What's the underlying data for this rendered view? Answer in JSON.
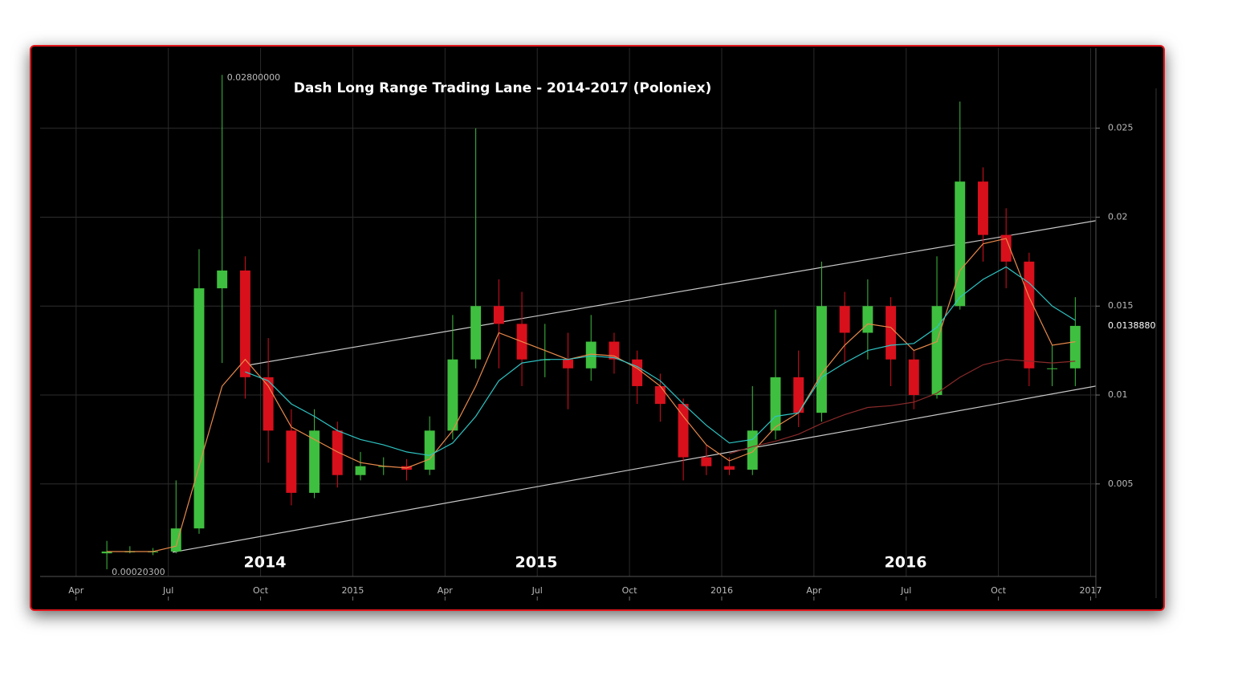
{
  "chart_data": {
    "type": "candlestick",
    "title": "Dash Long Range Trading Lane - 2014-2017 (Poloniex)",
    "x": [
      4.0,
      4.75,
      5.5,
      6.25,
      7.0,
      7.75,
      8.5,
      9.25,
      10.0,
      10.75,
      11.5,
      12.25,
      13.0,
      13.75,
      14.5,
      15.25,
      16.0,
      16.75,
      17.5,
      18.25,
      19.0,
      19.75,
      20.5,
      21.25,
      22.0,
      22.75,
      23.5,
      24.25,
      25.0,
      25.75,
      26.5,
      27.25,
      28.0,
      28.75,
      29.5,
      30.25,
      31.0,
      31.75,
      32.5,
      33.25,
      34.0,
      34.75,
      35.5
    ],
    "open": [
      0.0011,
      0.0012,
      0.0012,
      0.0012,
      0.0025,
      0.016,
      0.017,
      0.011,
      0.008,
      0.0045,
      0.008,
      0.0055,
      0.006,
      0.006,
      0.0058,
      0.008,
      0.012,
      0.015,
      0.014,
      0.012,
      0.012,
      0.0115,
      0.013,
      0.012,
      0.0105,
      0.0095,
      0.0065,
      0.006,
      0.0058,
      0.008,
      0.011,
      0.009,
      0.015,
      0.0135,
      0.015,
      0.012,
      0.01,
      0.015,
      0.022,
      0.019,
      0.0175,
      0.0115,
      0.0115
    ],
    "high": [
      0.0018,
      0.0015,
      0.0014,
      0.0052,
      0.0182,
      0.028,
      0.0178,
      0.0132,
      0.0092,
      0.0092,
      0.0085,
      0.0068,
      0.0065,
      0.0064,
      0.0088,
      0.0145,
      0.025,
      0.0165,
      0.0158,
      0.014,
      0.0135,
      0.0145,
      0.0135,
      0.0125,
      0.0112,
      0.0098,
      0.0072,
      0.0065,
      0.0105,
      0.0148,
      0.0125,
      0.0175,
      0.0158,
      0.0165,
      0.0155,
      0.0125,
      0.0178,
      0.0265,
      0.0228,
      0.0205,
      0.018,
      0.0128,
      0.0155
    ],
    "low": [
      0.000203,
      0.0011,
      0.001,
      0.0011,
      0.0022,
      0.0118,
      0.0098,
      0.0062,
      0.0038,
      0.0042,
      0.0048,
      0.0052,
      0.0055,
      0.0052,
      0.0055,
      0.0075,
      0.0115,
      0.0115,
      0.0105,
      0.011,
      0.0092,
      0.0108,
      0.0112,
      0.0095,
      0.0085,
      0.0052,
      0.0055,
      0.0055,
      0.0055,
      0.0075,
      0.0082,
      0.0085,
      0.0118,
      0.012,
      0.0105,
      0.0092,
      0.0098,
      0.0148,
      0.0175,
      0.016,
      0.0105,
      0.0105,
      0.0105
    ],
    "close": [
      0.0012,
      0.0012,
      0.0012,
      0.0025,
      0.016,
      0.017,
      0.011,
      0.008,
      0.0045,
      0.008,
      0.0055,
      0.006,
      0.006,
      0.0058,
      0.008,
      0.012,
      0.015,
      0.014,
      0.012,
      0.012,
      0.0115,
      0.013,
      0.012,
      0.0105,
      0.0095,
      0.0065,
      0.006,
      0.0058,
      0.008,
      0.011,
      0.009,
      0.015,
      0.0135,
      0.015,
      0.012,
      0.01,
      0.015,
      0.022,
      0.019,
      0.0175,
      0.0115,
      0.0115,
      0.013888
    ],
    "up_color": "#3fbf3f",
    "down_color": "#d8101c",
    "series": [
      {
        "color": "#e8894a",
        "values": [
          0.0012,
          0.0012,
          0.0012,
          0.0015,
          0.006,
          0.0105,
          0.012,
          0.0105,
          0.0082,
          0.0075,
          0.0068,
          0.0062,
          0.006,
          0.0059,
          0.0064,
          0.008,
          0.0105,
          0.0135,
          0.013,
          0.0125,
          0.012,
          0.0123,
          0.0122,
          0.0115,
          0.0105,
          0.0088,
          0.0072,
          0.0063,
          0.0068,
          0.0082,
          0.009,
          0.0112,
          0.0128,
          0.014,
          0.0138,
          0.0125,
          0.013,
          0.017,
          0.0185,
          0.0188,
          0.0155,
          0.0128,
          0.013
        ]
      },
      {
        "color": "#2ec4c4",
        "values": [
          null,
          null,
          null,
          null,
          null,
          null,
          0.0113,
          0.0108,
          0.0095,
          0.0088,
          0.008,
          0.0075,
          0.0072,
          0.0068,
          0.0066,
          0.0073,
          0.0088,
          0.0108,
          0.0118,
          0.012,
          0.012,
          0.0122,
          0.0121,
          0.0116,
          0.0108,
          0.0095,
          0.0083,
          0.0073,
          0.0075,
          0.0088,
          0.009,
          0.011,
          0.0118,
          0.0125,
          0.0128,
          0.0129,
          0.0138,
          0.0155,
          0.0165,
          0.0172,
          0.0163,
          0.015,
          0.0142
        ]
      },
      {
        "color": "#8a2a2a",
        "values": [
          null,
          null,
          null,
          null,
          null,
          null,
          null,
          null,
          null,
          null,
          null,
          null,
          null,
          null,
          null,
          null,
          null,
          null,
          null,
          null,
          null,
          null,
          null,
          null,
          null,
          null,
          null,
          0.0067,
          0.0071,
          0.0074,
          0.0078,
          0.0084,
          0.0089,
          0.0093,
          0.0094,
          0.0096,
          0.0101,
          0.011,
          0.0117,
          0.012,
          0.0119,
          0.0118,
          0.0119
        ]
      }
    ],
    "trend_lines": [
      {
        "color": "#c8c8c8",
        "x": [
          8.67,
          36.17
        ],
        "values": [
          0.0117,
          0.0198
        ]
      },
      {
        "color": "#c8c8c8",
        "x": [
          6.14,
          36.17
        ],
        "values": [
          0.00116,
          0.0105
        ]
      }
    ],
    "xlim": [
      1.83,
      36.17
    ],
    "xticks": [
      {
        "value": 3,
        "label": "Apr"
      },
      {
        "value": 6,
        "label": "Jul"
      },
      {
        "value": 9,
        "label": "Oct"
      },
      {
        "value": 12,
        "label": "2015"
      },
      {
        "value": 15,
        "label": "Apr"
      },
      {
        "value": 18,
        "label": "Jul"
      },
      {
        "value": 21,
        "label": "Oct"
      },
      {
        "value": 24,
        "label": "2016"
      },
      {
        "value": 27,
        "label": "Apr"
      },
      {
        "value": 30,
        "label": "Jul"
      },
      {
        "value": 33,
        "label": "Oct"
      },
      {
        "value": 36,
        "label": "2017"
      }
    ],
    "ylim": [
      -0.0002,
      0.0295
    ],
    "yticks": [
      0.005,
      0.01,
      0.015,
      0.02,
      0.025
    ],
    "grid": true,
    "high_label": {
      "value": 0.028,
      "label": "0.02800000"
    },
    "low_label": {
      "value": 0.000203,
      "label": "0.00020300"
    },
    "last_price": {
      "value": 0.013888,
      "label": "0.0138880"
    },
    "year_labels": [
      "2014",
      "2015",
      "2016"
    ]
  }
}
